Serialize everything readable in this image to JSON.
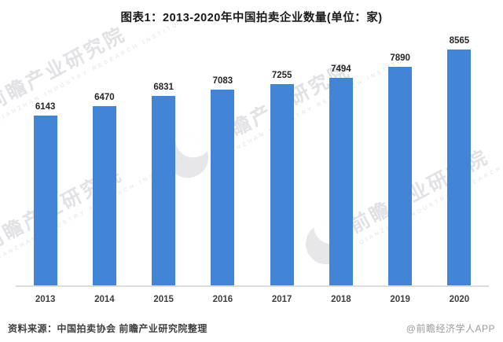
{
  "title": "图表1：2013-2020年中国拍卖企业数量(单位：家)",
  "chart_data": {
    "type": "bar",
    "title": "图表1：2013-2020年中国拍卖企业数量(单位：家)",
    "categories": [
      "2013",
      "2014",
      "2015",
      "2016",
      "2017",
      "2018",
      "2019",
      "2020"
    ],
    "values": [
      6143,
      6470,
      6831,
      7083,
      7255,
      7494,
      7890,
      8565
    ],
    "xlabel": "",
    "ylabel": "",
    "unit": "家",
    "ylim": [
      0,
      9000
    ],
    "grid": false,
    "legend": "none",
    "value_labels_shown": true,
    "bar_color": "#4284d6"
  },
  "footer": {
    "source": "资料来源：中国拍卖协会 前瞻产业研究院整理",
    "credit": "@前瞻经济学人APP"
  },
  "watermark": {
    "text": "前瞻产业研究院",
    "subtext": "QIANZHAN INDUSTRY RESEARCH INSTITUTE",
    "color": "#e2e2e6"
  },
  "colors": {
    "bar": "#4284d6",
    "axis_line": "#dcdcdc",
    "title_text": "#1a1a1a",
    "label_text": "#262626",
    "footer_muted": "#9a9a9a",
    "background": "#ffffff"
  }
}
